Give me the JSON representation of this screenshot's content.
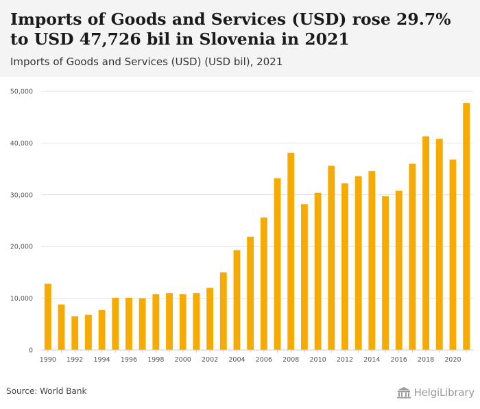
{
  "header": {
    "title": "Imports of Goods and Services (USD) rose 29.7% to USD 47,726 bil in Slovenia in 2021",
    "subtitle": "Imports of Goods and Services (USD) (USD bil), 2021"
  },
  "footer": {
    "source": "Source: World Bank",
    "brand": "HelgiLibrary"
  },
  "colors": {
    "bar": "#F7AA00",
    "grid": "#e2e2e2",
    "tick_text": "#555555"
  },
  "chart_data": {
    "type": "bar",
    "ylim": [
      0,
      50000
    ],
    "yticks": [
      0,
      10000,
      20000,
      30000,
      40000,
      50000
    ],
    "ytick_labels": [
      "0",
      "10,000",
      "20,000",
      "30,000",
      "40,000",
      "50,000"
    ],
    "grid": true,
    "categories": [
      "1990",
      "1991",
      "1992",
      "1993",
      "1994",
      "1995",
      "1996",
      "1997",
      "1998",
      "1999",
      "2000",
      "2001",
      "2002",
      "2003",
      "2004",
      "2005",
      "2006",
      "2007",
      "2008",
      "2009",
      "2010",
      "2011",
      "2012",
      "2013",
      "2014",
      "2015",
      "2016",
      "2017",
      "2018",
      "2019",
      "2020",
      "2021"
    ],
    "xtick_labels": [
      "1990",
      "1992",
      "1994",
      "1996",
      "1998",
      "2000",
      "2002",
      "2004",
      "2006",
      "2008",
      "2010",
      "2012",
      "2014",
      "2016",
      "2018",
      "2020"
    ],
    "values": [
      12800,
      8800,
      6500,
      6800,
      7700,
      10100,
      10100,
      10000,
      10800,
      11000,
      10800,
      11000,
      12000,
      15000,
      19300,
      21900,
      25600,
      33200,
      38100,
      28200,
      30400,
      35600,
      32200,
      33600,
      34600,
      29700,
      30800,
      36000,
      41300,
      40800,
      36800,
      47726
    ]
  }
}
